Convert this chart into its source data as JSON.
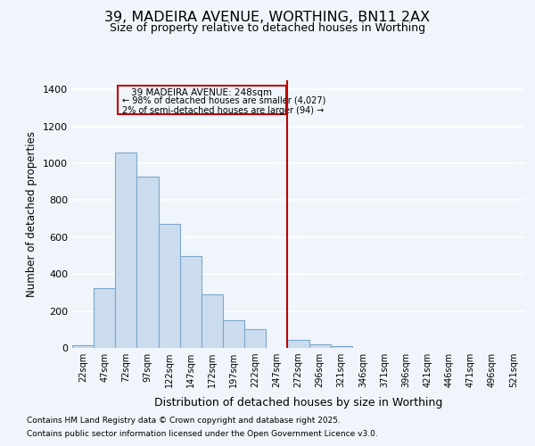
{
  "title": "39, MADEIRA AVENUE, WORTHING, BN11 2AX",
  "subtitle": "Size of property relative to detached houses in Worthing",
  "xlabel": "Distribution of detached houses by size in Worthing",
  "ylabel": "Number of detached properties",
  "bar_labels": [
    "22sqm",
    "47sqm",
    "72sqm",
    "97sqm",
    "122sqm",
    "147sqm",
    "172sqm",
    "197sqm",
    "222sqm",
    "247sqm",
    "272sqm",
    "296sqm",
    "321sqm",
    "346sqm",
    "371sqm",
    "396sqm",
    "421sqm",
    "446sqm",
    "471sqm",
    "496sqm",
    "521sqm"
  ],
  "bar_values": [
    15,
    325,
    1060,
    930,
    670,
    500,
    290,
    150,
    100,
    0,
    45,
    20,
    10,
    0,
    0,
    0,
    0,
    0,
    0,
    0,
    0
  ],
  "bar_color": "#ccdcef",
  "bar_edge_color": "#7ba7cc",
  "property_line_label": "39 MADEIRA AVENUE: 248sqm",
  "annotation_line1": "← 98% of detached houses are smaller (4,027)",
  "annotation_line2": "2% of semi-detached houses are larger (94) →",
  "annotation_box_color": "#c00000",
  "prop_line_index": 9.5,
  "ylim": [
    0,
    1450
  ],
  "yticks": [
    0,
    200,
    400,
    600,
    800,
    1000,
    1200,
    1400
  ],
  "background_color": "#f0f5fb",
  "grid_color": "#ffffff",
  "footnote1": "Contains HM Land Registry data © Crown copyright and database right 2025.",
  "footnote2": "Contains public sector information licensed under the Open Government Licence v3.0."
}
